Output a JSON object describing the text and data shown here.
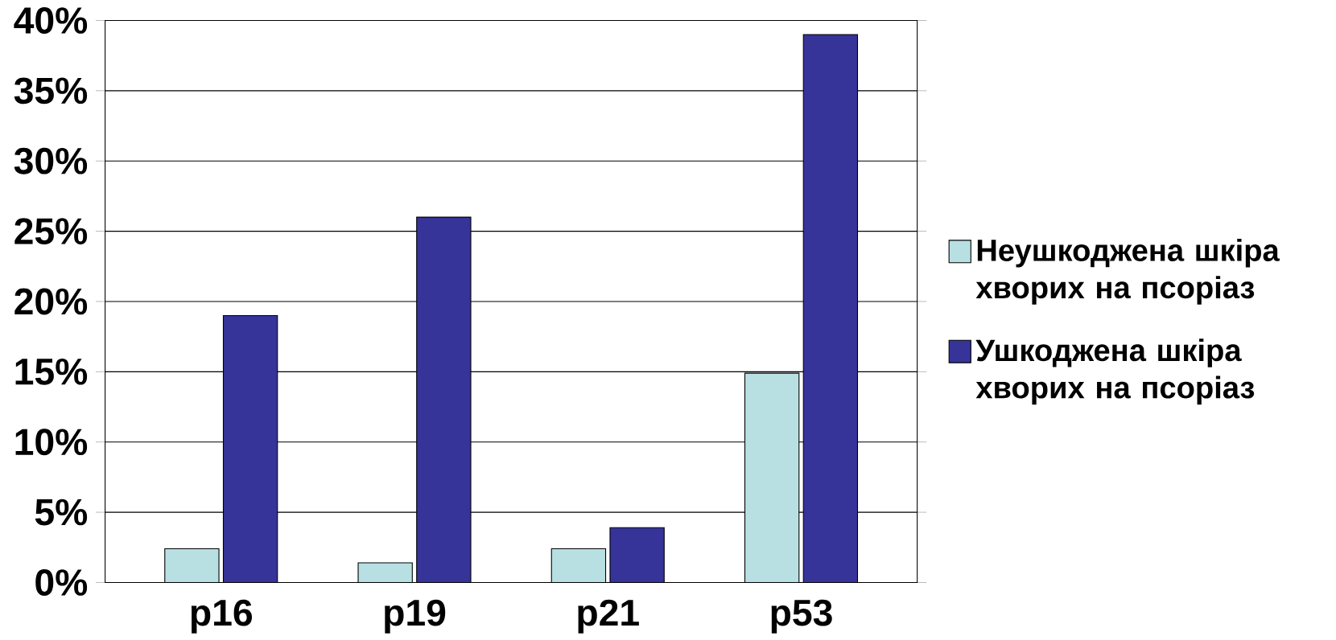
{
  "chart_data": {
    "type": "bar",
    "categories": [
      "p16",
      "p19",
      "p21",
      "p53"
    ],
    "series": [
      {
        "name": "Неушкоджена шкіра хворих на псоріаз",
        "color": "#b8e0e3",
        "values": [
          2.4,
          1.4,
          2.4,
          14.9
        ]
      },
      {
        "name": "Ушкоджена шкіра хворих на псоріаз",
        "color": "#363399",
        "values": [
          19,
          26,
          3.9,
          39
        ]
      }
    ],
    "ylim": [
      0,
      40
    ],
    "yticks": [
      {
        "value": 0,
        "label": "0%"
      },
      {
        "value": 5,
        "label": "5%"
      },
      {
        "value": 10,
        "label": "10%"
      },
      {
        "value": 15,
        "label": "15%"
      },
      {
        "value": 20,
        "label": "20%"
      },
      {
        "value": 25,
        "label": "25%"
      },
      {
        "value": 30,
        "label": "30%"
      },
      {
        "value": 35,
        "label": "35%"
      },
      {
        "value": 40,
        "label": "40%"
      }
    ],
    "grid": "y",
    "legend": "right"
  }
}
